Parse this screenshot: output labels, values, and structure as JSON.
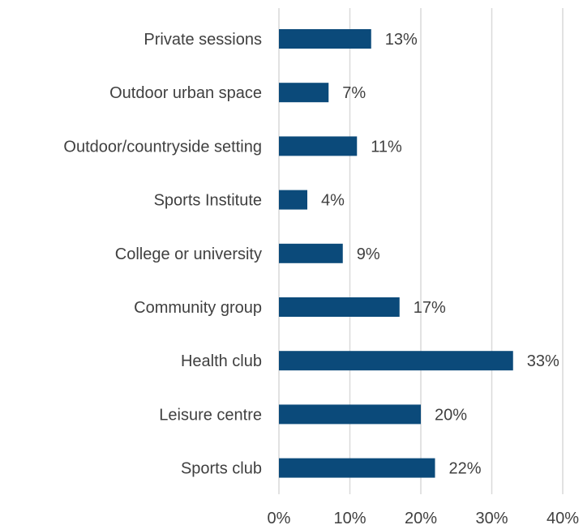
{
  "chart_data": {
    "type": "bar",
    "orientation": "horizontal",
    "categories": [
      "Private sessions",
      "Outdoor urban space",
      "Outdoor/countryside setting",
      "Sports Institute",
      "College or university",
      "Community group",
      "Health club",
      "Leisure centre",
      "Sports club"
    ],
    "values": [
      13,
      7,
      11,
      4,
      9,
      17,
      33,
      20,
      22
    ],
    "value_labels": [
      "13%",
      "7%",
      "11%",
      "4%",
      "9%",
      "17%",
      "33%",
      "20%",
      "22%"
    ],
    "xlim": [
      0,
      40
    ],
    "x_ticks": [
      0,
      10,
      20,
      30,
      40
    ],
    "x_tick_labels": [
      "0%",
      "10%",
      "20%",
      "30%",
      "40%"
    ],
    "grid": true,
    "legend": "none",
    "bar_color": "#0b4a7a",
    "title": "",
    "xlabel": "",
    "ylabel": ""
  }
}
